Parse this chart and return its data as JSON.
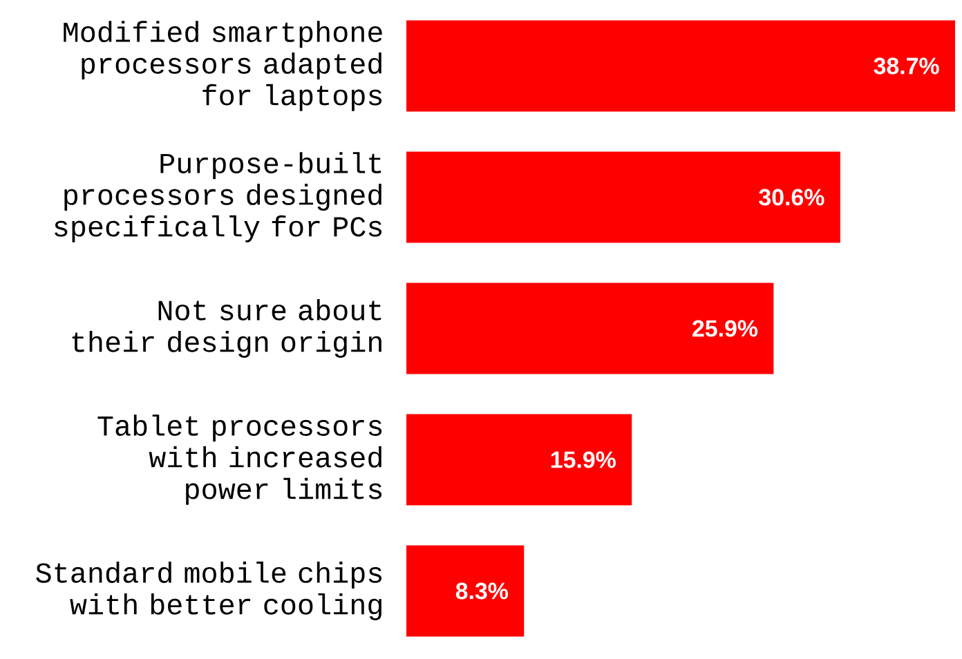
{
  "chart_data": {
    "type": "bar",
    "orientation": "horizontal",
    "categories": [
      "Modified smartphone processors adapted for laptops",
      "Purpose-built processors designed specifically for PCs",
      "Not sure about their design origin",
      "Tablet processors with increased power limits",
      "Standard mobile chips with better cooling"
    ],
    "values": [
      38.7,
      30.6,
      25.9,
      15.9,
      8.3
    ],
    "value_labels": [
      "38.7%",
      "30.6%",
      "25.9%",
      "15.9%",
      "8.3%"
    ],
    "color": "#ff0000"
  }
}
